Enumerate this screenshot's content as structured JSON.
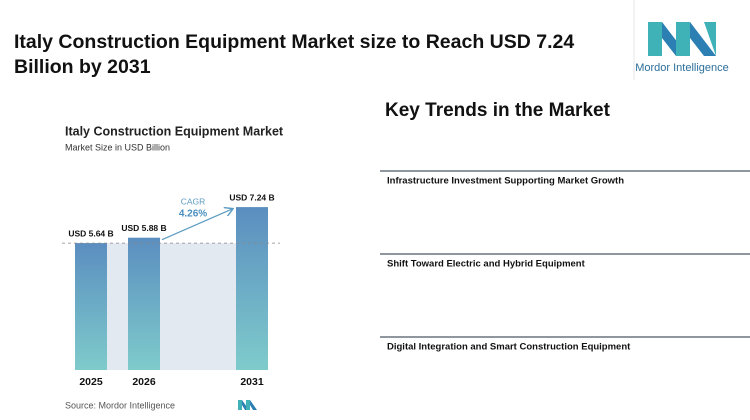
{
  "header": {
    "title": "Italy Construction Equipment Market size to Reach USD 7.24 Billion by 2031",
    "logo_text": "Mordor Intelligence"
  },
  "chart_data": {
    "type": "bar",
    "title": "Italy Construction Equipment Market",
    "subtitle": "Market Size in USD Billion",
    "categories": [
      "2025",
      "2026",
      "2031"
    ],
    "values": [
      5.64,
      5.88,
      7.24
    ],
    "value_labels": [
      "USD 5.64 B",
      "USD 5.88 B",
      "USD 7.24 B"
    ],
    "cagr_label": "CAGR",
    "cagr_value": "4.26%",
    "source": "Source: Mordor Intelligence"
  },
  "trends": {
    "title": "Key Trends in the Market",
    "items": [
      "Infrastructure Investment Supporting Market Growth",
      "Shift Toward Electric and Hybrid Equipment",
      "Digital Integration and Smart Construction Equipment"
    ]
  }
}
